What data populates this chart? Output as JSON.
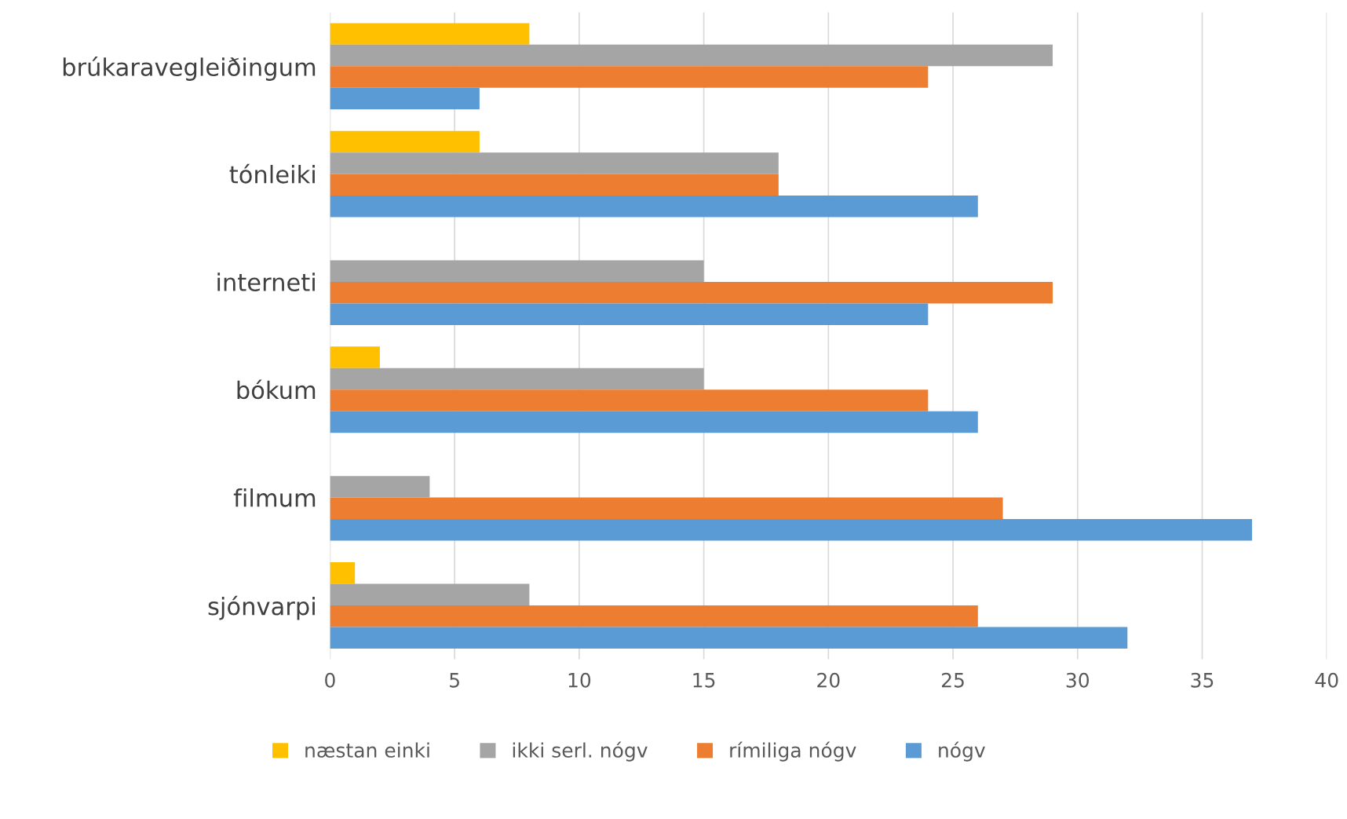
{
  "chart_data": {
    "type": "bar",
    "orientation": "horizontal",
    "categories": [
      "brúkaravegleiðingum",
      "tónleiki",
      "interneti",
      "bókum",
      "filmum",
      "sjónvarpi"
    ],
    "series": [
      {
        "name": "næstan einki",
        "color": "#ffc000",
        "values": [
          8,
          6,
          0,
          2,
          0,
          1
        ]
      },
      {
        "name": "ikki serl. nógv",
        "color": "#a5a5a5",
        "values": [
          29,
          18,
          15,
          15,
          4,
          8
        ]
      },
      {
        "name": "rímiliga nógv",
        "color": "#ed7d31",
        "values": [
          24,
          18,
          29,
          24,
          27,
          26
        ]
      },
      {
        "name": "nógv",
        "color": "#5b9bd5",
        "values": [
          6,
          26,
          24,
          26,
          37,
          32
        ]
      }
    ],
    "xlim": [
      0,
      40
    ],
    "xticks": [
      0,
      5,
      10,
      15,
      20,
      25,
      30,
      35,
      40
    ],
    "grid": "x",
    "legend": "bottom"
  }
}
